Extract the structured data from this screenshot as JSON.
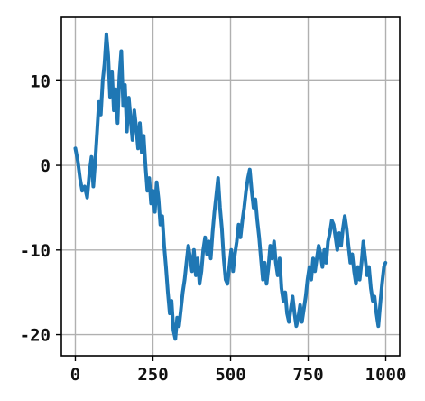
{
  "chart_data": {
    "type": "line",
    "title": "",
    "xlabel": "",
    "ylabel": "",
    "xlim": [
      -45,
      1045
    ],
    "ylim": [
      -22.5,
      17.5
    ],
    "xticks": [
      0,
      250,
      500,
      750,
      1000
    ],
    "yticks": [
      -20,
      -10,
      0,
      10
    ],
    "grid": true,
    "series": [
      {
        "color": "#1f77b4",
        "points": [
          [
            0,
            2.0
          ],
          [
            8,
            0.5
          ],
          [
            15,
            -1.5
          ],
          [
            22,
            -3.0
          ],
          [
            30,
            -2.5
          ],
          [
            38,
            -3.8
          ],
          [
            45,
            -1.0
          ],
          [
            52,
            1.0
          ],
          [
            58,
            -2.5
          ],
          [
            64,
            0.5
          ],
          [
            70,
            4.0
          ],
          [
            76,
            7.5
          ],
          [
            82,
            6.0
          ],
          [
            88,
            10.0
          ],
          [
            94,
            12.0
          ],
          [
            100,
            15.5
          ],
          [
            106,
            13.0
          ],
          [
            112,
            8.0
          ],
          [
            118,
            11.0
          ],
          [
            124,
            6.5
          ],
          [
            130,
            9.0
          ],
          [
            136,
            5.0
          ],
          [
            142,
            10.5
          ],
          [
            148,
            13.5
          ],
          [
            154,
            7.0
          ],
          [
            160,
            9.5
          ],
          [
            166,
            4.0
          ],
          [
            172,
            8.0
          ],
          [
            178,
            5.5
          ],
          [
            184,
            3.0
          ],
          [
            190,
            6.5
          ],
          [
            196,
            4.5
          ],
          [
            202,
            2.0
          ],
          [
            208,
            5.0
          ],
          [
            214,
            1.5
          ],
          [
            220,
            3.5
          ],
          [
            226,
            0.0
          ],
          [
            232,
            -3.0
          ],
          [
            238,
            -1.5
          ],
          [
            244,
            -4.5
          ],
          [
            250,
            -3.0
          ],
          [
            256,
            -5.5
          ],
          [
            262,
            -2.0
          ],
          [
            268,
            -4.0
          ],
          [
            274,
            -7.0
          ],
          [
            280,
            -6.0
          ],
          [
            286,
            -9.5
          ],
          [
            292,
            -12.0
          ],
          [
            298,
            -15.0
          ],
          [
            304,
            -17.5
          ],
          [
            310,
            -16.0
          ],
          [
            316,
            -19.5
          ],
          [
            322,
            -20.5
          ],
          [
            328,
            -18.0
          ],
          [
            334,
            -19.0
          ],
          [
            340,
            -17.0
          ],
          [
            346,
            -15.0
          ],
          [
            352,
            -13.5
          ],
          [
            358,
            -11.5
          ],
          [
            364,
            -9.5
          ],
          [
            370,
            -11.0
          ],
          [
            376,
            -12.5
          ],
          [
            382,
            -10.0
          ],
          [
            388,
            -13.0
          ],
          [
            394,
            -11.0
          ],
          [
            400,
            -14.0
          ],
          [
            406,
            -12.5
          ],
          [
            412,
            -10.0
          ],
          [
            418,
            -8.5
          ],
          [
            424,
            -10.5
          ],
          [
            430,
            -9.0
          ],
          [
            436,
            -11.0
          ],
          [
            442,
            -8.0
          ],
          [
            448,
            -5.5
          ],
          [
            454,
            -3.5
          ],
          [
            460,
            -1.5
          ],
          [
            466,
            -5.0
          ],
          [
            472,
            -7.5
          ],
          [
            478,
            -11.0
          ],
          [
            484,
            -13.5
          ],
          [
            490,
            -14.0
          ],
          [
            496,
            -12.0
          ],
          [
            502,
            -10.0
          ],
          [
            508,
            -12.5
          ],
          [
            514,
            -10.5
          ],
          [
            520,
            -9.0
          ],
          [
            526,
            -7.0
          ],
          [
            532,
            -8.5
          ],
          [
            538,
            -6.5
          ],
          [
            544,
            -5.0
          ],
          [
            550,
            -3.0
          ],
          [
            556,
            -1.5
          ],
          [
            562,
            -0.5
          ],
          [
            568,
            -3.0
          ],
          [
            574,
            -5.0
          ],
          [
            580,
            -4.0
          ],
          [
            586,
            -6.5
          ],
          [
            592,
            -8.5
          ],
          [
            598,
            -11.0
          ],
          [
            604,
            -13.5
          ],
          [
            610,
            -11.5
          ],
          [
            616,
            -14.0
          ],
          [
            622,
            -12.0
          ],
          [
            628,
            -9.5
          ],
          [
            634,
            -11.0
          ],
          [
            640,
            -9.0
          ],
          [
            646,
            -11.5
          ],
          [
            652,
            -13.0
          ],
          [
            658,
            -11.0
          ],
          [
            664,
            -14.5
          ],
          [
            670,
            -16.0
          ],
          [
            676,
            -15.0
          ],
          [
            682,
            -17.5
          ],
          [
            688,
            -18.5
          ],
          [
            694,
            -17.0
          ],
          [
            700,
            -15.5
          ],
          [
            706,
            -17.5
          ],
          [
            712,
            -19.0
          ],
          [
            718,
            -18.0
          ],
          [
            724,
            -16.5
          ],
          [
            730,
            -18.5
          ],
          [
            736,
            -17.0
          ],
          [
            742,
            -15.5
          ],
          [
            748,
            -13.5
          ],
          [
            754,
            -12.0
          ],
          [
            760,
            -13.5
          ],
          [
            766,
            -11.0
          ],
          [
            772,
            -12.5
          ],
          [
            778,
            -11.0
          ],
          [
            784,
            -9.5
          ],
          [
            790,
            -10.5
          ],
          [
            796,
            -12.0
          ],
          [
            802,
            -10.0
          ],
          [
            808,
            -11.5
          ],
          [
            814,
            -9.0
          ],
          [
            820,
            -8.0
          ],
          [
            826,
            -6.5
          ],
          [
            832,
            -7.0
          ],
          [
            838,
            -8.5
          ],
          [
            844,
            -10.0
          ],
          [
            850,
            -8.0
          ],
          [
            856,
            -9.5
          ],
          [
            862,
            -7.5
          ],
          [
            868,
            -6.0
          ],
          [
            874,
            -7.5
          ],
          [
            880,
            -9.5
          ],
          [
            886,
            -11.5
          ],
          [
            892,
            -10.5
          ],
          [
            898,
            -12.5
          ],
          [
            904,
            -14.0
          ],
          [
            910,
            -12.0
          ],
          [
            916,
            -13.5
          ],
          [
            922,
            -11.5
          ],
          [
            928,
            -9.0
          ],
          [
            934,
            -11.0
          ],
          [
            940,
            -13.0
          ],
          [
            946,
            -12.0
          ],
          [
            952,
            -14.5
          ],
          [
            958,
            -16.0
          ],
          [
            964,
            -15.5
          ],
          [
            970,
            -17.5
          ],
          [
            976,
            -19.0
          ],
          [
            982,
            -16.5
          ],
          [
            988,
            -14.0
          ],
          [
            994,
            -12.0
          ],
          [
            999,
            -11.5
          ]
        ]
      }
    ]
  }
}
